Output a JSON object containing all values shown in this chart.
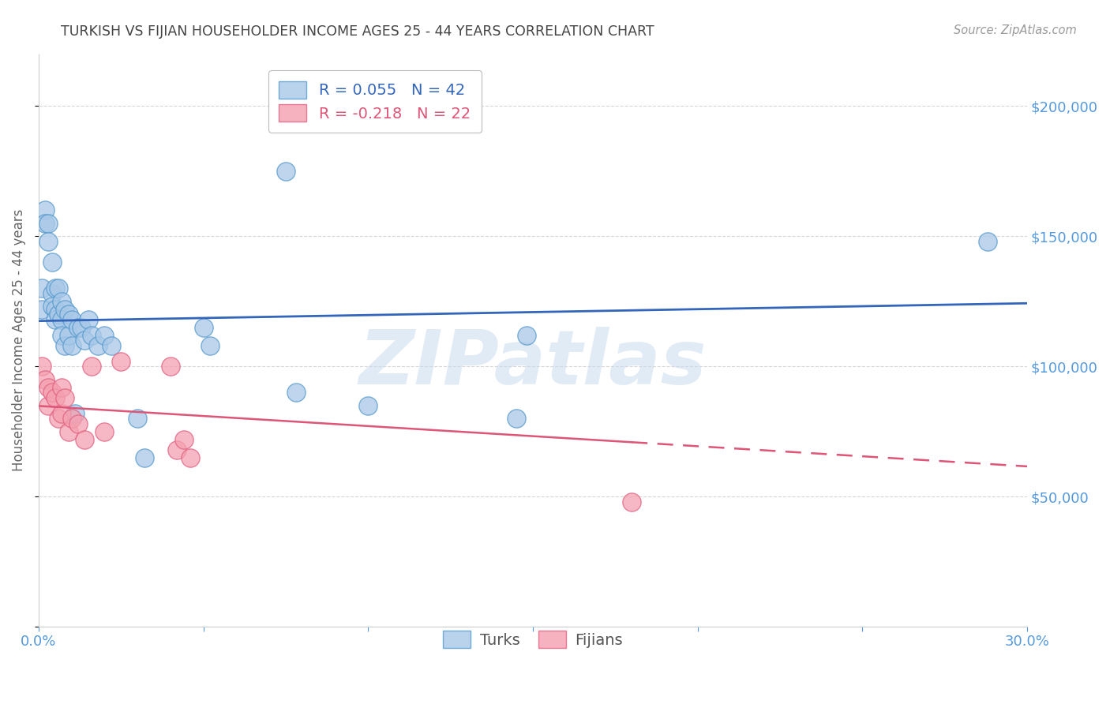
{
  "title": "TURKISH VS FIJIAN HOUSEHOLDER INCOME AGES 25 - 44 YEARS CORRELATION CHART",
  "source": "Source: ZipAtlas.com",
  "ylabel": "Householder Income Ages 25 - 44 years",
  "xlim": [
    0.0,
    0.3
  ],
  "ylim": [
    0,
    220000
  ],
  "yticks": [
    0,
    50000,
    100000,
    150000,
    200000
  ],
  "ytick_labels": [
    "",
    "$50,000",
    "$100,000",
    "$150,000",
    "$200,000"
  ],
  "xticks": [
    0.0,
    0.05,
    0.1,
    0.15,
    0.2,
    0.25,
    0.3
  ],
  "xtick_labels": [
    "0.0%",
    "",
    "",
    "",
    "",
    "",
    "30.0%"
  ],
  "watermark": "ZIPatlas",
  "legend_turks": "Turks",
  "legend_fijians": "Fijians",
  "R_turks": 0.055,
  "N_turks": 42,
  "R_fijians": -0.218,
  "N_fijians": 22,
  "turks_color": "#a8c8e8",
  "fijians_color": "#f4a0b0",
  "turks_edge_color": "#5599cc",
  "fijians_edge_color": "#e06080",
  "turks_line_color": "#3366bb",
  "fijians_line_color": "#dd5577",
  "axis_label_color": "#5599dd",
  "title_color": "#444444",
  "grid_color": "#cccccc",
  "turks_x": [
    0.001,
    0.001,
    0.002,
    0.002,
    0.003,
    0.003,
    0.004,
    0.004,
    0.004,
    0.005,
    0.005,
    0.005,
    0.006,
    0.006,
    0.007,
    0.007,
    0.007,
    0.008,
    0.008,
    0.009,
    0.009,
    0.01,
    0.01,
    0.011,
    0.012,
    0.013,
    0.014,
    0.015,
    0.016,
    0.018,
    0.02,
    0.022,
    0.03,
    0.032,
    0.05,
    0.052,
    0.075,
    0.078,
    0.1,
    0.145,
    0.148,
    0.288
  ],
  "turks_y": [
    130000,
    122000,
    160000,
    155000,
    155000,
    148000,
    140000,
    128000,
    123000,
    130000,
    122000,
    118000,
    130000,
    120000,
    125000,
    118000,
    112000,
    122000,
    108000,
    120000,
    112000,
    118000,
    108000,
    82000,
    115000,
    115000,
    110000,
    118000,
    112000,
    108000,
    112000,
    108000,
    80000,
    65000,
    115000,
    108000,
    175000,
    90000,
    85000,
    80000,
    112000,
    148000
  ],
  "fijians_x": [
    0.001,
    0.002,
    0.003,
    0.003,
    0.004,
    0.005,
    0.006,
    0.007,
    0.007,
    0.008,
    0.009,
    0.01,
    0.012,
    0.014,
    0.016,
    0.02,
    0.025,
    0.04,
    0.042,
    0.044,
    0.046,
    0.18
  ],
  "fijians_y": [
    100000,
    95000,
    92000,
    85000,
    90000,
    88000,
    80000,
    92000,
    82000,
    88000,
    75000,
    80000,
    78000,
    72000,
    100000,
    75000,
    102000,
    100000,
    68000,
    72000,
    65000,
    48000
  ]
}
